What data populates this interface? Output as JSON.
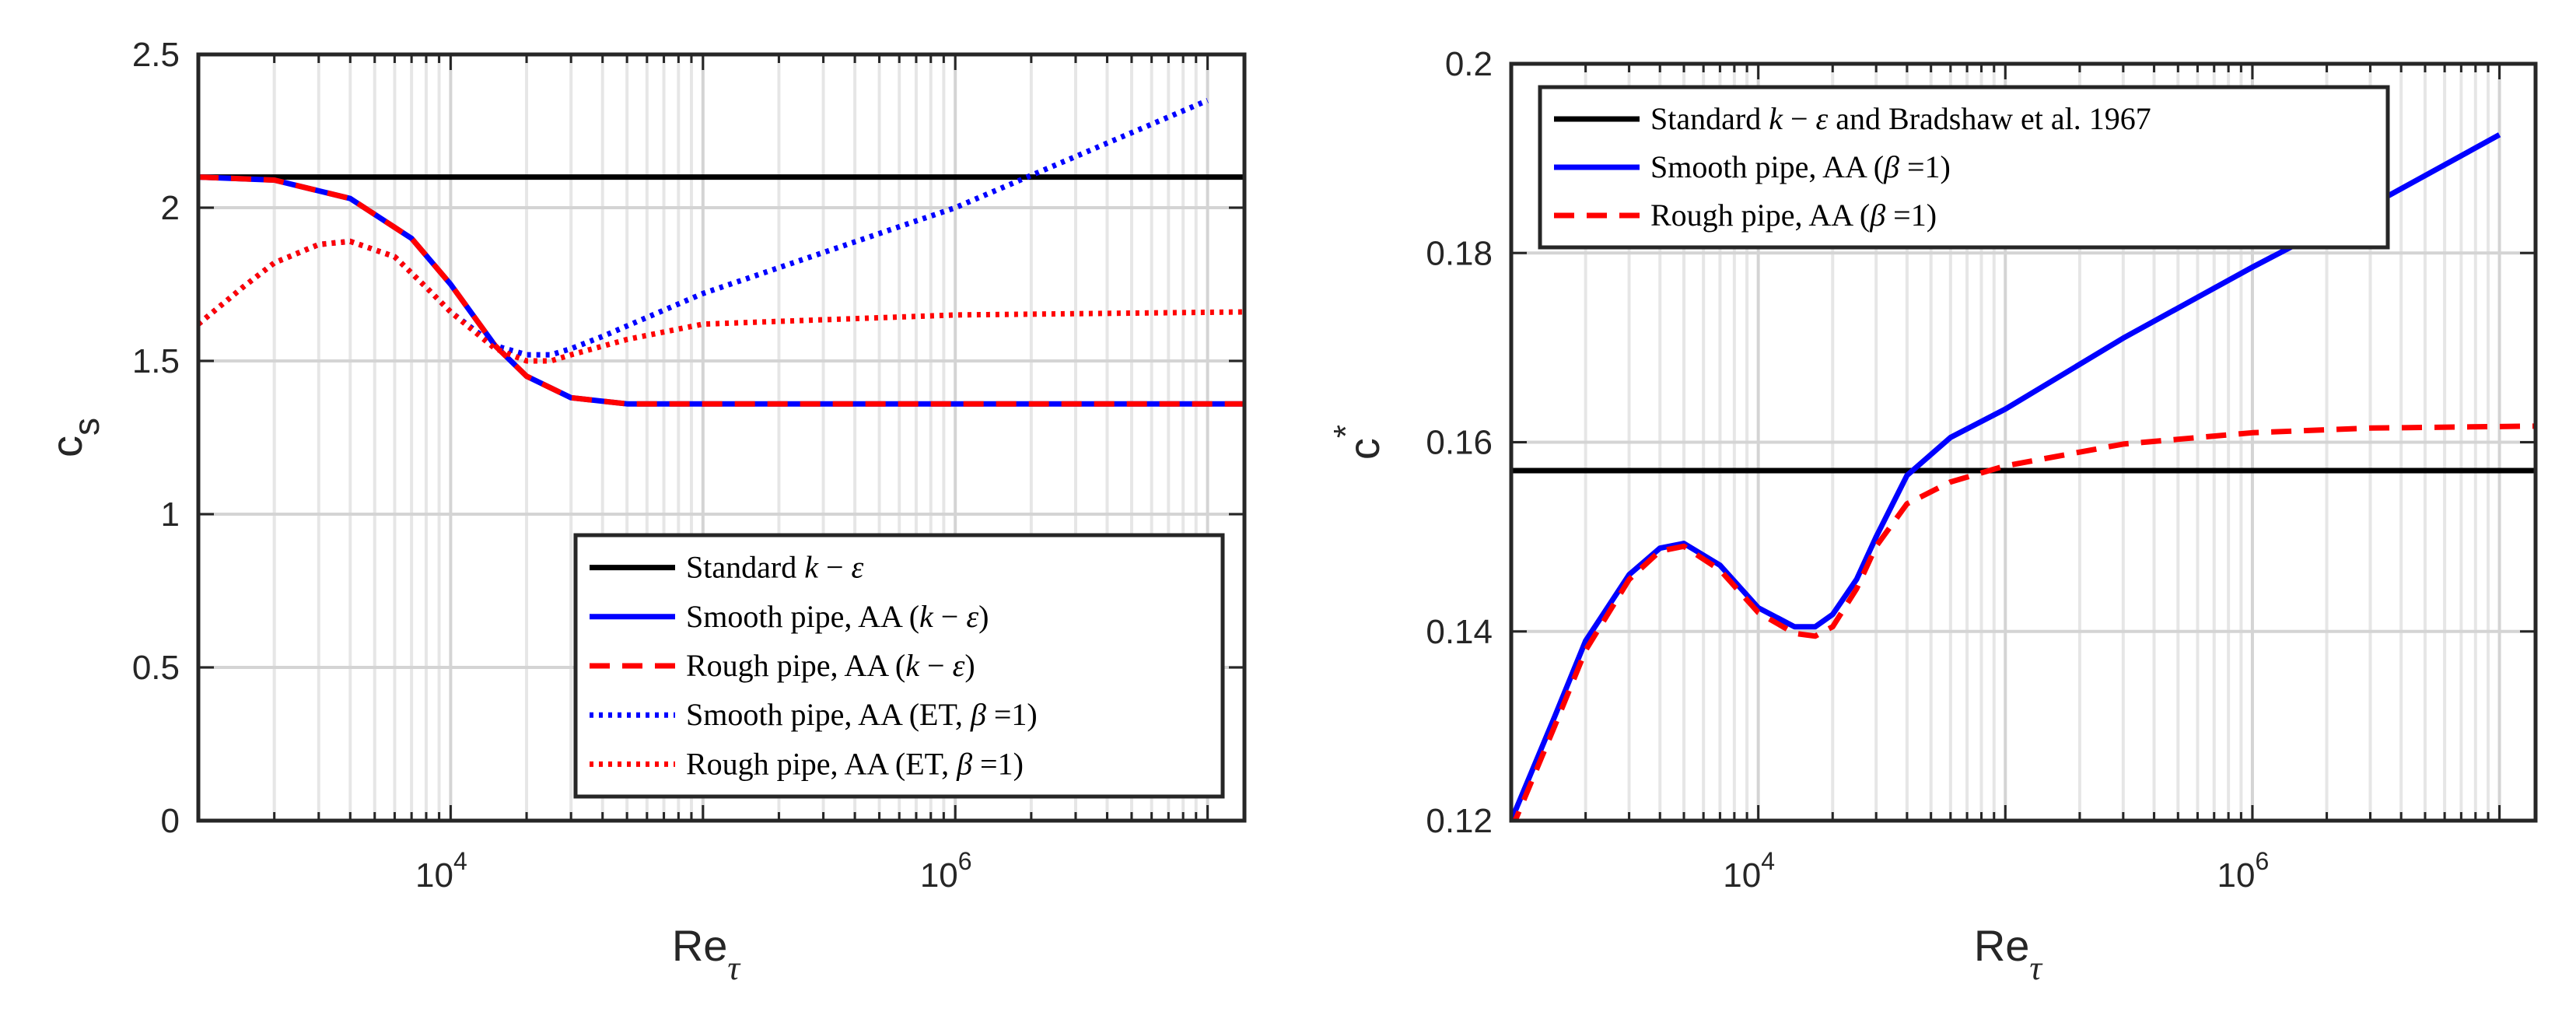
{
  "chart_data": [
    {
      "type": "line",
      "xscale": "log",
      "xlim": [
        1000,
        14000000
      ],
      "ylim": [
        0,
        2.5
      ],
      "ylabel_main": "c",
      "ylabel_sub": "s",
      "xlabel_main": "Re",
      "xlabel_sub": "τ",
      "grid": true,
      "legend_position": "bottom-right",
      "yticks": [
        "0",
        "0.5",
        "1",
        "1.5",
        "2",
        "2.5"
      ],
      "xticks": [
        {
          "base": "10",
          "exp": "4"
        },
        {
          "base": "10",
          "exp": "6"
        }
      ],
      "series": [
        {
          "name": "Standard k − ε",
          "color": "#000000",
          "style": "solid",
          "x": [
            1000,
            14000000
          ],
          "y": [
            2.1,
            2.1
          ]
        },
        {
          "name": "Smooth pipe, AA (k − ε)",
          "color": "#0000ff",
          "style": "solid",
          "x": [
            1000,
            2000,
            4000,
            7000,
            10000,
            15000,
            20000,
            30000,
            50000,
            80000,
            100000,
            1000000,
            14000000
          ],
          "y": [
            2.1,
            2.09,
            2.03,
            1.9,
            1.75,
            1.55,
            1.45,
            1.38,
            1.36,
            1.36,
            1.36,
            1.36,
            1.36
          ]
        },
        {
          "name": "Rough pipe, AA (k − ε)",
          "color": "#ff0000",
          "style": "dashed",
          "x": [
            1000,
            2000,
            4000,
            7000,
            10000,
            15000,
            20000,
            30000,
            50000,
            80000,
            100000,
            1000000,
            14000000
          ],
          "y": [
            2.1,
            2.09,
            2.03,
            1.9,
            1.75,
            1.55,
            1.45,
            1.38,
            1.36,
            1.36,
            1.36,
            1.36,
            1.36
          ]
        },
        {
          "name": "Smooth pipe, AA (ET, β =1)",
          "color": "#0000ff",
          "style": "dotted",
          "x": [
            1000,
            1500,
            2000,
            3000,
            4000,
            6000,
            8000,
            10000,
            15000,
            20000,
            25000,
            30000,
            40000,
            100000,
            1000000,
            10000000
          ],
          "y": [
            1.62,
            1.74,
            1.82,
            1.88,
            1.89,
            1.84,
            1.74,
            1.66,
            1.55,
            1.52,
            1.52,
            1.54,
            1.58,
            1.72,
            2.0,
            2.35
          ]
        },
        {
          "name": "Rough pipe, AA (ET, β =1)",
          "color": "#ff0000",
          "style": "dotted",
          "x": [
            1000,
            1500,
            2000,
            3000,
            4000,
            6000,
            8000,
            10000,
            15000,
            20000,
            25000,
            30000,
            50000,
            100000,
            1000000,
            14000000
          ],
          "y": [
            1.62,
            1.74,
            1.82,
            1.88,
            1.89,
            1.84,
            1.74,
            1.66,
            1.54,
            1.5,
            1.5,
            1.52,
            1.57,
            1.62,
            1.65,
            1.66
          ]
        }
      ]
    },
    {
      "type": "line",
      "xscale": "log",
      "xlim": [
        1000,
        14000000
      ],
      "ylim": [
        0.12,
        0.2
      ],
      "ylabel_main": "c",
      "ylabel_sub": "*",
      "xlabel_main": "Re",
      "xlabel_sub": "τ",
      "grid": true,
      "legend_position": "top-left",
      "yticks": [
        "0.12",
        "0.14",
        "0.16",
        "0.18",
        "0.2"
      ],
      "xticks": [
        {
          "base": "10",
          "exp": "4"
        },
        {
          "base": "10",
          "exp": "6"
        }
      ],
      "series": [
        {
          "name": "Standard k − ε and Bradshaw et al. 1967",
          "color": "#000000",
          "style": "solid",
          "x": [
            1000,
            14000000
          ],
          "y": [
            0.157,
            0.157
          ]
        },
        {
          "name": "Smooth pipe, AA (β =1)",
          "color": "#0000ff",
          "style": "solid",
          "x": [
            1000,
            1500,
            2000,
            3000,
            4000,
            5000,
            7000,
            10000,
            14000,
            17000,
            20000,
            25000,
            30000,
            40000,
            60000,
            100000,
            300000,
            1000000,
            3000000,
            10000000
          ],
          "y": [
            0.12,
            0.131,
            0.139,
            0.146,
            0.1488,
            0.1493,
            0.147,
            0.1425,
            0.1405,
            0.1405,
            0.1418,
            0.1455,
            0.15,
            0.1565,
            0.1605,
            0.1635,
            0.171,
            0.1785,
            0.185,
            0.1925
          ]
        },
        {
          "name": "Rough pipe, AA (β =1)",
          "color": "#ff0000",
          "style": "dashed",
          "x": [
            1000,
            1500,
            2000,
            3000,
            4000,
            5000,
            7000,
            10000,
            14000,
            17000,
            20000,
            25000,
            30000,
            40000,
            60000,
            100000,
            300000,
            1000000,
            3000000,
            14000000
          ],
          "y": [
            0.119,
            0.13,
            0.138,
            0.1455,
            0.1485,
            0.149,
            0.1465,
            0.142,
            0.1398,
            0.1395,
            0.1405,
            0.1445,
            0.149,
            0.1535,
            0.1558,
            0.1575,
            0.1598,
            0.161,
            0.1615,
            0.1617
          ]
        }
      ]
    }
  ]
}
